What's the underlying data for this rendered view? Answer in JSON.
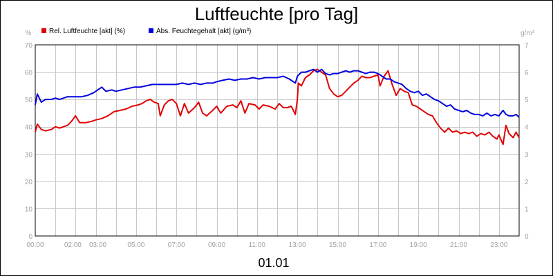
{
  "chart_data": {
    "type": "line",
    "title": "Luftfeuchte [pro Tag]",
    "date_label": "01.01",
    "grid": true,
    "legend_placement": "top-left",
    "x_tick_labels": [
      "00:00",
      "02:00",
      "03:00",
      "05:00",
      "07:00",
      "09:00",
      "11:00",
      "13:00",
      "15:00",
      "17:00",
      "19:00",
      "21:00",
      "23:00"
    ],
    "x_range_hours": [
      0,
      24
    ],
    "y_left": {
      "unit": "%",
      "ylim": [
        0,
        70
      ],
      "ticks": [
        "0",
        "10",
        "20",
        "30",
        "40",
        "50",
        "60",
        "70"
      ]
    },
    "y_right": {
      "unit": "g/m³",
      "ylim": [
        0,
        7
      ],
      "ticks": [
        "0",
        "1",
        "2",
        "3",
        "4",
        "5",
        "6",
        "7"
      ]
    },
    "series": [
      {
        "name": "Rel. Luftfeuchte [akt] (%)",
        "color": "#e00000",
        "axis": "left",
        "points": [
          [
            0.0,
            38
          ],
          [
            0.1,
            41
          ],
          [
            0.3,
            39
          ],
          [
            0.5,
            38.5
          ],
          [
            0.8,
            39
          ],
          [
            1.0,
            40
          ],
          [
            1.2,
            39.5
          ],
          [
            1.4,
            40
          ],
          [
            1.6,
            40.5
          ],
          [
            1.8,
            42
          ],
          [
            2.0,
            44
          ],
          [
            2.2,
            41.5
          ],
          [
            2.5,
            41.5
          ],
          [
            2.8,
            42
          ],
          [
            3.0,
            42.5
          ],
          [
            3.3,
            43
          ],
          [
            3.6,
            44
          ],
          [
            3.9,
            45.5
          ],
          [
            4.2,
            46
          ],
          [
            4.5,
            46.5
          ],
          [
            4.8,
            47.5
          ],
          [
            5.1,
            48
          ],
          [
            5.3,
            48.5
          ],
          [
            5.5,
            49.5
          ],
          [
            5.7,
            50
          ],
          [
            5.9,
            49
          ],
          [
            6.1,
            48.5
          ],
          [
            6.2,
            44
          ],
          [
            6.4,
            48
          ],
          [
            6.6,
            49.5
          ],
          [
            6.8,
            50
          ],
          [
            7.0,
            48.5
          ],
          [
            7.2,
            44
          ],
          [
            7.4,
            48.5
          ],
          [
            7.6,
            45
          ],
          [
            7.9,
            47
          ],
          [
            8.1,
            49
          ],
          [
            8.3,
            45
          ],
          [
            8.5,
            44
          ],
          [
            8.8,
            46
          ],
          [
            9.0,
            47.5
          ],
          [
            9.2,
            45
          ],
          [
            9.5,
            47.5
          ],
          [
            9.8,
            48
          ],
          [
            10.0,
            47
          ],
          [
            10.2,
            49.5
          ],
          [
            10.4,
            45
          ],
          [
            10.6,
            48.5
          ],
          [
            10.9,
            48
          ],
          [
            11.1,
            46.5
          ],
          [
            11.3,
            48
          ],
          [
            11.6,
            47.5
          ],
          [
            11.9,
            46.5
          ],
          [
            12.1,
            48.5
          ],
          [
            12.3,
            47
          ],
          [
            12.5,
            47
          ],
          [
            12.7,
            47.5
          ],
          [
            12.9,
            44.5
          ],
          [
            13.0,
            50
          ],
          [
            13.05,
            56
          ],
          [
            13.2,
            55
          ],
          [
            13.4,
            58
          ],
          [
            13.6,
            59
          ],
          [
            13.8,
            60.5
          ],
          [
            14.0,
            61
          ],
          [
            14.2,
            60
          ],
          [
            14.4,
            59
          ],
          [
            14.6,
            54
          ],
          [
            14.8,
            52
          ],
          [
            15.0,
            51
          ],
          [
            15.2,
            51.5
          ],
          [
            15.4,
            53
          ],
          [
            15.6,
            54.5
          ],
          [
            15.8,
            56
          ],
          [
            16.0,
            57
          ],
          [
            16.2,
            58.5
          ],
          [
            16.4,
            58
          ],
          [
            16.6,
            58
          ],
          [
            16.8,
            58.5
          ],
          [
            17.0,
            59
          ],
          [
            17.1,
            55
          ],
          [
            17.3,
            58.5
          ],
          [
            17.5,
            60.5
          ],
          [
            17.7,
            55.5
          ],
          [
            17.9,
            51.5
          ],
          [
            18.1,
            54
          ],
          [
            18.3,
            53
          ],
          [
            18.5,
            52.5
          ],
          [
            18.7,
            48
          ],
          [
            18.9,
            47.5
          ],
          [
            19.1,
            46.5
          ],
          [
            19.3,
            45.5
          ],
          [
            19.5,
            44.5
          ],
          [
            19.7,
            44
          ],
          [
            19.9,
            41.5
          ],
          [
            20.1,
            39.5
          ],
          [
            20.3,
            38
          ],
          [
            20.5,
            39.5
          ],
          [
            20.7,
            38
          ],
          [
            20.9,
            38.5
          ],
          [
            21.1,
            37.5
          ],
          [
            21.3,
            38
          ],
          [
            21.5,
            37.5
          ],
          [
            21.7,
            38
          ],
          [
            21.9,
            36.5
          ],
          [
            22.1,
            37.5
          ],
          [
            22.3,
            37
          ],
          [
            22.5,
            38
          ],
          [
            22.7,
            36.5
          ],
          [
            22.9,
            35.5
          ],
          [
            23.0,
            37
          ],
          [
            23.2,
            33.5
          ],
          [
            23.35,
            40.5
          ],
          [
            23.5,
            37.5
          ],
          [
            23.7,
            36
          ],
          [
            23.85,
            38
          ],
          [
            24.0,
            36
          ]
        ]
      },
      {
        "name": "Abs. Feuchtegehalt [akt] (g/m³)",
        "color": "#0000e0",
        "axis": "right",
        "points": [
          [
            0.0,
            4.8
          ],
          [
            0.1,
            5.2
          ],
          [
            0.3,
            4.9
          ],
          [
            0.5,
            5.0
          ],
          [
            0.8,
            5.0
          ],
          [
            1.0,
            5.05
          ],
          [
            1.2,
            5.0
          ],
          [
            1.4,
            5.05
          ],
          [
            1.6,
            5.1
          ],
          [
            1.8,
            5.1
          ],
          [
            2.0,
            5.1
          ],
          [
            2.3,
            5.1
          ],
          [
            2.6,
            5.15
          ],
          [
            2.9,
            5.25
          ],
          [
            3.1,
            5.35
          ],
          [
            3.3,
            5.45
          ],
          [
            3.5,
            5.3
          ],
          [
            3.8,
            5.35
          ],
          [
            4.0,
            5.3
          ],
          [
            4.3,
            5.35
          ],
          [
            4.6,
            5.4
          ],
          [
            4.9,
            5.45
          ],
          [
            5.2,
            5.45
          ],
          [
            5.5,
            5.5
          ],
          [
            5.8,
            5.55
          ],
          [
            6.1,
            5.55
          ],
          [
            6.4,
            5.55
          ],
          [
            6.7,
            5.55
          ],
          [
            7.0,
            5.55
          ],
          [
            7.3,
            5.6
          ],
          [
            7.6,
            5.55
          ],
          [
            7.9,
            5.6
          ],
          [
            8.2,
            5.55
          ],
          [
            8.5,
            5.6
          ],
          [
            8.8,
            5.6
          ],
          [
            9.0,
            5.65
          ],
          [
            9.3,
            5.7
          ],
          [
            9.6,
            5.75
          ],
          [
            9.9,
            5.7
          ],
          [
            10.2,
            5.75
          ],
          [
            10.5,
            5.75
          ],
          [
            10.8,
            5.8
          ],
          [
            11.1,
            5.75
          ],
          [
            11.4,
            5.8
          ],
          [
            11.7,
            5.8
          ],
          [
            12.0,
            5.8
          ],
          [
            12.3,
            5.85
          ],
          [
            12.6,
            5.75
          ],
          [
            12.9,
            5.6
          ],
          [
            13.0,
            5.85
          ],
          [
            13.2,
            6.0
          ],
          [
            13.4,
            6.0
          ],
          [
            13.6,
            6.05
          ],
          [
            13.8,
            6.1
          ],
          [
            14.0,
            6.0
          ],
          [
            14.2,
            6.1
          ],
          [
            14.4,
            5.95
          ],
          [
            14.6,
            5.9
          ],
          [
            14.8,
            5.95
          ],
          [
            15.0,
            5.95
          ],
          [
            15.2,
            6.0
          ],
          [
            15.4,
            6.05
          ],
          [
            15.6,
            6.0
          ],
          [
            15.8,
            6.05
          ],
          [
            16.0,
            6.05
          ],
          [
            16.2,
            6.0
          ],
          [
            16.4,
            5.95
          ],
          [
            16.6,
            6.0
          ],
          [
            16.8,
            6.0
          ],
          [
            17.0,
            5.95
          ],
          [
            17.2,
            5.85
          ],
          [
            17.4,
            5.75
          ],
          [
            17.6,
            5.75
          ],
          [
            17.8,
            5.65
          ],
          [
            18.0,
            5.6
          ],
          [
            18.2,
            5.55
          ],
          [
            18.4,
            5.4
          ],
          [
            18.6,
            5.3
          ],
          [
            18.8,
            5.25
          ],
          [
            19.0,
            5.3
          ],
          [
            19.2,
            5.15
          ],
          [
            19.4,
            5.2
          ],
          [
            19.6,
            5.1
          ],
          [
            19.8,
            5.0
          ],
          [
            20.0,
            4.95
          ],
          [
            20.2,
            4.85
          ],
          [
            20.4,
            4.75
          ],
          [
            20.6,
            4.8
          ],
          [
            20.8,
            4.65
          ],
          [
            21.0,
            4.6
          ],
          [
            21.2,
            4.55
          ],
          [
            21.4,
            4.6
          ],
          [
            21.6,
            4.5
          ],
          [
            21.8,
            4.45
          ],
          [
            22.0,
            4.45
          ],
          [
            22.2,
            4.4
          ],
          [
            22.4,
            4.5
          ],
          [
            22.6,
            4.4
          ],
          [
            22.8,
            4.45
          ],
          [
            23.0,
            4.4
          ],
          [
            23.2,
            4.6
          ],
          [
            23.35,
            4.45
          ],
          [
            23.5,
            4.4
          ],
          [
            23.7,
            4.4
          ],
          [
            23.85,
            4.45
          ],
          [
            24.0,
            4.35
          ]
        ]
      }
    ]
  }
}
